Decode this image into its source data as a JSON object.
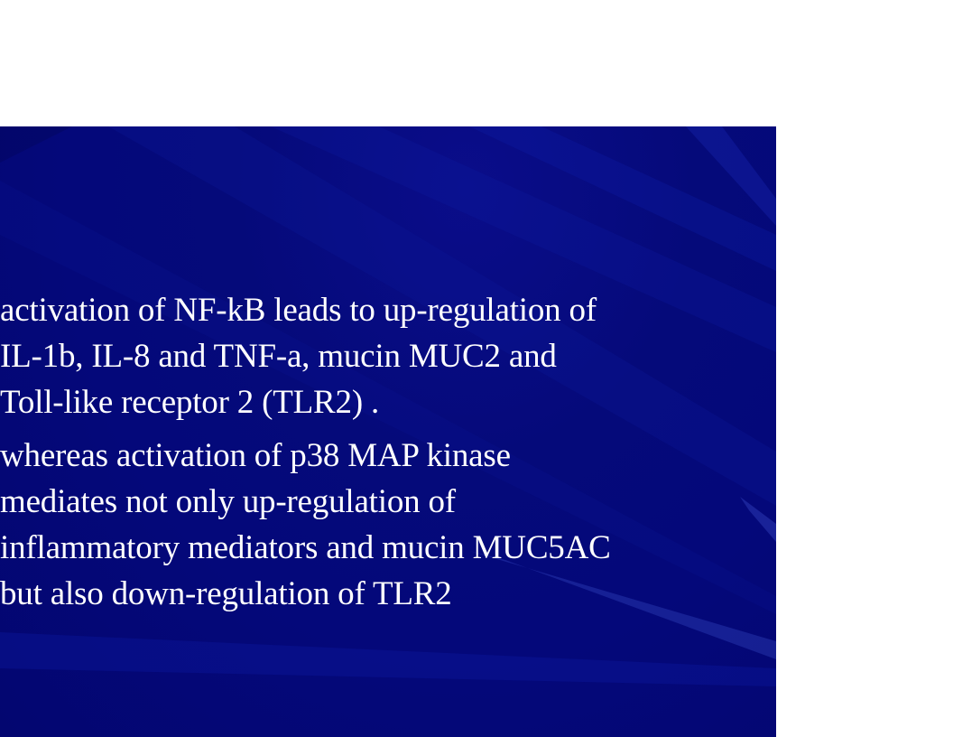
{
  "slide": {
    "colors": {
      "background": "#04087a",
      "text": "#ffffff",
      "page": "#ffffff"
    },
    "paragraphs": [
      {
        "lines": [
          "activation of NF-kB leads to up-regulation of",
          "IL-1b, IL-8 and TNF-a, mucin MUC2 and",
          "Toll-like receptor 2 (TLR2) ."
        ]
      },
      {
        "lines": [
          "whereas activation of p38 MAP kinase",
          "mediates not only up-regulation of",
          "inflammatory mediators and mucin MUC5AC",
          "but also down-regulation of TLR2"
        ]
      }
    ]
  }
}
